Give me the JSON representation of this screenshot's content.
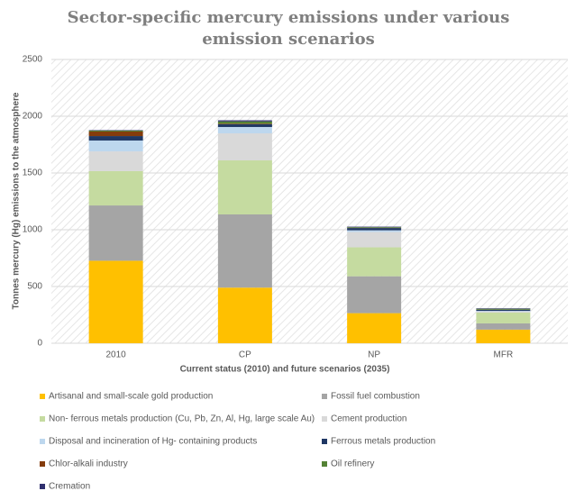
{
  "chart_data": {
    "type": "stacked_bar",
    "title": "Sector-specific mercury emissions under various emission scenarios",
    "x_label": "Current status (2010) and future scenarios (2035)",
    "y_label": "Tonnes mercury (Hg) emissions to the atmosphere",
    "categories": [
      "2010",
      "CP",
      "NP",
      "MFR"
    ],
    "ylim": [
      0,
      2500
    ],
    "yticks": [
      0,
      500,
      1000,
      1500,
      2000,
      2500
    ],
    "grid": true,
    "series": [
      {
        "name": "Artisanal and small-scale gold production",
        "color": "#ffc000",
        "values": [
          727,
          490,
          265,
          120
        ]
      },
      {
        "name": "Fossil fuel combustion",
        "color": "#a5a5a5",
        "values": [
          487,
          645,
          325,
          55
        ]
      },
      {
        "name": "Non- ferrous metals production (Cu, Pb, Zn, Al, Hg, large scale Au)",
        "color": "#c5dba0",
        "values": [
          302,
          476,
          255,
          95
        ]
      },
      {
        "name": "Cement production",
        "color": "#d9d9d9",
        "values": [
          174,
          238,
          135,
          10
        ]
      },
      {
        "name": "Disposal and incineration of Hg- containing products",
        "color": "#bdd7ee",
        "values": [
          96,
          56,
          15,
          5
        ]
      },
      {
        "name": "Ferrous metals production",
        "color": "#1f3864",
        "values": [
          39,
          24,
          20,
          10
        ]
      },
      {
        "name": "Chlor-alkali industry",
        "color": "#843c0c",
        "values": [
          40,
          5,
          2,
          1
        ]
      },
      {
        "name": "Oil refinery",
        "color": "#548235",
        "values": [
          8,
          20,
          6,
          8
        ]
      },
      {
        "name": "Cremation",
        "color": "#2f2f6e",
        "values": [
          4,
          10,
          4,
          4
        ]
      }
    ]
  }
}
